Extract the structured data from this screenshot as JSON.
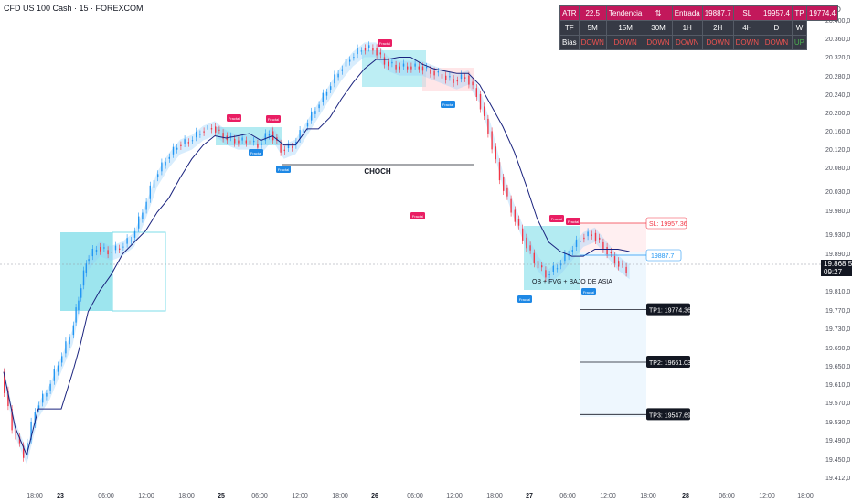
{
  "header": {
    "title": "CFD US 100 Cash · 15 · FOREXCOM",
    "currency": "USD"
  },
  "price_badge": {
    "price": "19.868,5",
    "countdown": "09:27"
  },
  "table": {
    "row1": [
      "ATR",
      "22.5",
      "Tendencia",
      "⇅",
      "Entrada",
      "19887.7",
      "SL",
      "19957.4",
      "TP",
      "19774.4"
    ],
    "row2": [
      "TF",
      "5M",
      "15M",
      "30M",
      "1H",
      "2H",
      "4H",
      "D",
      "W"
    ],
    "row3": [
      "Bias",
      "DOWN",
      "DOWN",
      "DOWN",
      "DOWN",
      "DOWN",
      "DOWN",
      "DOWN",
      "UP"
    ]
  },
  "colors": {
    "bull": "#2196f3",
    "bear": "#f23645",
    "ma": "#1a237e",
    "zone": "#26c6da"
  },
  "chart_data": {
    "type": "candlestick",
    "x_tick_labels": [
      "18:00",
      "23",
      "06:00",
      "12:00",
      "18:00",
      "25",
      "06:00",
      "12:00",
      "18:00",
      "26",
      "06:00",
      "12:00",
      "18:00",
      "27",
      "06:00",
      "12:00",
      "18:00",
      "28",
      "06:00",
      "12:00",
      "18:00"
    ],
    "y_tick_labels": [
      "20.400,0",
      "20.360,0",
      "20.320,0",
      "20.280,0",
      "20.240,0",
      "20.200,0",
      "20.160,0",
      "20.120,0",
      "20.080,0",
      "20.030,0",
      "19.980,0",
      "19.930,0",
      "19.890,0",
      "19.810,0",
      "19.770,0",
      "19.730,0",
      "19.690,0",
      "19.650,0",
      "19.610,0",
      "19.570,0",
      "19.530,0",
      "19.490,0",
      "19.450,0",
      "19.412,0"
    ],
    "price_path": [
      [
        0,
        19640
      ],
      [
        3,
        19520
      ],
      [
        6,
        19460
      ],
      [
        9,
        19560
      ],
      [
        12,
        19600
      ],
      [
        15,
        19660
      ],
      [
        18,
        19720
      ],
      [
        20,
        19800
      ],
      [
        22,
        19880
      ],
      [
        25,
        19910
      ],
      [
        28,
        19900
      ],
      [
        31,
        19910
      ],
      [
        34,
        19930
      ],
      [
        37,
        19990
      ],
      [
        40,
        20060
      ],
      [
        43,
        20100
      ],
      [
        46,
        20130
      ],
      [
        49,
        20140
      ],
      [
        52,
        20160
      ],
      [
        55,
        20170
      ],
      [
        58,
        20150
      ],
      [
        61,
        20140
      ],
      [
        64,
        20140
      ],
      [
        67,
        20130
      ],
      [
        70,
        20160
      ],
      [
        73,
        20120
      ],
      [
        76,
        20130
      ],
      [
        79,
        20170
      ],
      [
        82,
        20210
      ],
      [
        85,
        20250
      ],
      [
        88,
        20290
      ],
      [
        91,
        20320
      ],
      [
        94,
        20340
      ],
      [
        97,
        20340
      ],
      [
        100,
        20310
      ],
      [
        103,
        20300
      ],
      [
        106,
        20300
      ],
      [
        109,
        20300
      ],
      [
        112,
        20290
      ],
      [
        115,
        20280
      ],
      [
        118,
        20270
      ],
      [
        121,
        20280
      ],
      [
        124,
        20240
      ],
      [
        127,
        20160
      ],
      [
        130,
        20060
      ],
      [
        133,
        19990
      ],
      [
        136,
        19930
      ],
      [
        139,
        19880
      ],
      [
        142,
        19850
      ],
      [
        145,
        19870
      ],
      [
        148,
        19900
      ],
      [
        151,
        19930
      ],
      [
        154,
        19940
      ],
      [
        157,
        19910
      ],
      [
        160,
        19880
      ],
      [
        163,
        19860
      ]
    ],
    "annotations": [
      {
        "text": "CHOCH"
      },
      {
        "text": "OB + FVG + BAJO DE ASIA"
      },
      {
        "text": "SL: 19957.36"
      },
      {
        "text": "19887.7"
      },
      {
        "text": "TP1: 19774.36",
        "value": 19774.36
      },
      {
        "text": "TP2: 19661.03",
        "value": 19661.03
      },
      {
        "text": "TP3: 19547.69",
        "value": 19547.69
      },
      {
        "text": "Fractal"
      }
    ]
  }
}
